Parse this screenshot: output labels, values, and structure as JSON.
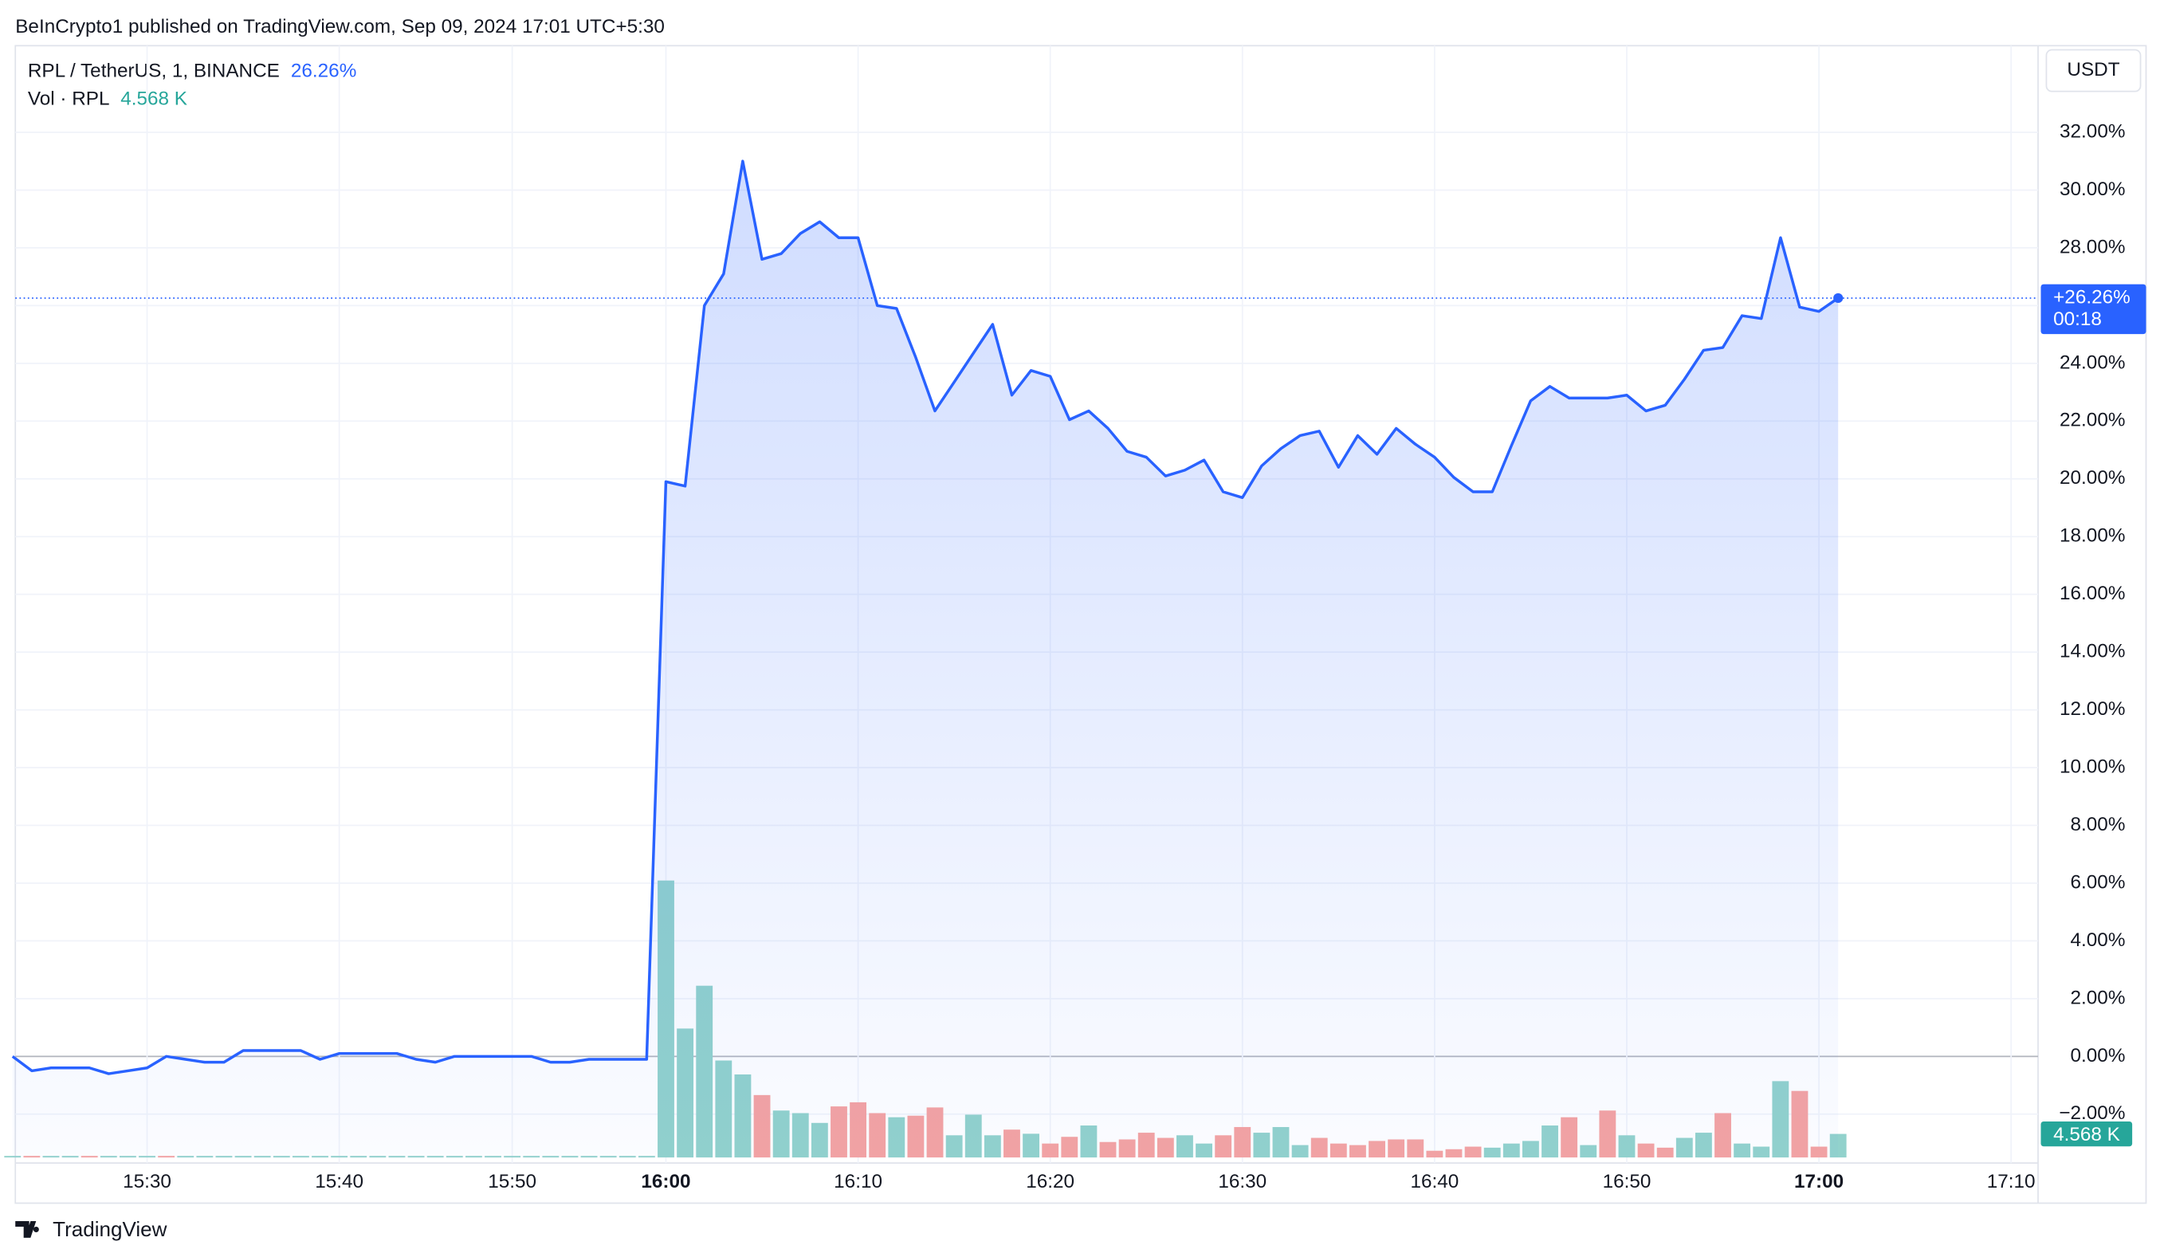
{
  "header": {
    "published": "BeInCrypto1 published on TradingView.com, Sep 09, 2024 17:01 UTC+5:30",
    "brand": "TradingView"
  },
  "chart_data": {
    "type": "line",
    "symbol": "RPL / TetherUS, 1, BINANCE",
    "currency": "USDT",
    "last_label": "26.26%",
    "price_tag": "+26.26%",
    "countdown": "00:18",
    "categories": [
      null,
      null,
      null,
      null,
      null,
      null,
      null,
      "15:30",
      null,
      null,
      null,
      null,
      null,
      null,
      null,
      null,
      null,
      "15:40",
      null,
      null,
      null,
      null,
      null,
      null,
      null,
      null,
      "15:50",
      null,
      null,
      null,
      null,
      null,
      null,
      null,
      "16:00",
      null,
      null,
      null,
      null,
      null,
      null,
      null,
      null,
      null,
      "16:10",
      null,
      null,
      null,
      null,
      null,
      null,
      null,
      null,
      null,
      "16:20",
      null,
      null,
      null,
      null,
      null,
      null,
      null,
      null,
      null,
      "16:30",
      null,
      null,
      null,
      null,
      null,
      null,
      null,
      null,
      null,
      "16:40",
      null,
      null,
      null,
      null,
      null,
      null,
      null,
      null,
      null,
      "16:50",
      null,
      null,
      null,
      null,
      null,
      null,
      null,
      null,
      null,
      "17:00",
      null,
      null,
      null,
      null,
      null,
      null,
      null,
      null,
      null,
      "17:10"
    ],
    "series": [
      {
        "color": "#2962ff",
        "values": [
          0,
          -0.5,
          -0.4,
          -0.4,
          -0.4,
          -0.6,
          -0.5,
          -0.4,
          0,
          -0.1,
          -0.2,
          -0.2,
          0.2,
          0.2,
          0.2,
          0.2,
          -0.1,
          0.1,
          0.1,
          0.1,
          0.1,
          -0.1,
          -0.2,
          0,
          0,
          0,
          0,
          0,
          -0.2,
          -0.2,
          -0.1,
          -0.1,
          -0.1,
          -0.1,
          19.9,
          19.75,
          26.0,
          27.1,
          31.0,
          27.6,
          27.8,
          28.5,
          28.9,
          28.35,
          28.35,
          26.0,
          25.9,
          24.2,
          22.35,
          23.35,
          24.35,
          25.35,
          22.9,
          23.75,
          23.55,
          22.05,
          22.35,
          21.75,
          20.95,
          20.75,
          20.1,
          20.3,
          20.65,
          19.55,
          19.35,
          20.45,
          21.05,
          21.5,
          21.65,
          20.4,
          21.5,
          20.85,
          21.75,
          21.2,
          20.75,
          20.05,
          19.55,
          19.55,
          21.15,
          22.7,
          23.2,
          22.8,
          22.8,
          22.8,
          22.9,
          22.35,
          22.55,
          23.45,
          24.45,
          24.55,
          25.65,
          25.55,
          28.35,
          25.95,
          25.8,
          26.26,
          null,
          null,
          null,
          null,
          null,
          null,
          null,
          null,
          null
        ]
      }
    ],
    "volume": {
      "name": "Vol · RPL",
      "last_label": "4.568 K",
      "vlim": [
        0,
        60000
      ],
      "values": [
        300,
        300,
        300,
        300,
        300,
        300,
        300,
        300,
        300,
        300,
        300,
        300,
        300,
        300,
        300,
        300,
        300,
        300,
        300,
        300,
        300,
        300,
        300,
        300,
        300,
        300,
        300,
        300,
        300,
        300,
        300,
        300,
        300,
        300,
        53700,
        25000,
        33300,
        18800,
        16100,
        12100,
        9100,
        8600,
        6700,
        9900,
        10700,
        8600,
        7800,
        8100,
        9700,
        4300,
        8300,
        4300,
        5400,
        4600,
        2700,
        4000,
        6200,
        3000,
        3500,
        4800,
        3800,
        4300,
        2700,
        4300,
        5900,
        4800,
        5900,
        2400,
        3800,
        2700,
        2400,
        3200,
        3500,
        3500,
        1300,
        1600,
        2100,
        1900,
        2700,
        3200,
        6200,
        7800,
        2400,
        9100,
        4300,
        2700,
        1900,
        3800,
        4800,
        8600,
        2700,
        2100,
        14800,
        12900,
        2100,
        4568,
        null,
        null,
        null,
        null,
        null,
        null,
        null,
        null,
        null
      ],
      "colors": [
        "#92d2cc",
        "#f5a3a2",
        "#92d2cc",
        "#92d2cc",
        "#f5a3a2",
        "#92d2cc",
        "#92d2cc",
        "#92d2cc",
        "#f5a3a2",
        "#92d2cc",
        "#92d2cc",
        "#92d2cc",
        "#92d2cc",
        "#92d2cc",
        "#92d2cc",
        "#92d2cc",
        "#92d2cc",
        "#92d2cc",
        "#92d2cc",
        "#92d2cc",
        "#92d2cc",
        "#92d2cc",
        "#92d2cc",
        "#92d2cc",
        "#92d2cc",
        "#92d2cc",
        "#92d2cc",
        "#92d2cc",
        "#92d2cc",
        "#92d2cc",
        "#92d2cc",
        "#92d2cc",
        "#92d2cc",
        "#92d2cc",
        "#92d2cc",
        "#92d2cc",
        "#92d2cc",
        "#92d2cc",
        "#92d2cc",
        "#f5a3a2",
        "#92d2cc",
        "#92d2cc",
        "#92d2cc",
        "#f5a3a2",
        "#f5a3a2",
        "#f5a3a2",
        "#92d2cc",
        "#f5a3a2",
        "#f5a3a2",
        "#92d2cc",
        "#92d2cc",
        "#92d2cc",
        "#f5a3a2",
        "#92d2cc",
        "#f5a3a2",
        "#f5a3a2",
        "#92d2cc",
        "#f5a3a2",
        "#f5a3a2",
        "#f5a3a2",
        "#f5a3a2",
        "#92d2cc",
        "#92d2cc",
        "#f5a3a2",
        "#f5a3a2",
        "#92d2cc",
        "#92d2cc",
        "#92d2cc",
        "#f5a3a2",
        "#f5a3a2",
        "#f5a3a2",
        "#f5a3a2",
        "#f5a3a2",
        "#f5a3a2",
        "#f5a3a2",
        "#f5a3a2",
        "#f5a3a2",
        "#92d2cc",
        "#92d2cc",
        "#92d2cc",
        "#92d2cc",
        "#f5a3a2",
        "#92d2cc",
        "#f5a3a2",
        "#92d2cc",
        "#f5a3a2",
        "#f5a3a2",
        "#92d2cc",
        "#92d2cc",
        "#f5a3a2",
        "#92d2cc",
        "#92d2cc",
        "#92d2cc",
        "#f5a3a2",
        "#f5a3a2",
        "#92d2cc",
        null,
        null,
        null,
        null,
        null,
        null,
        null,
        null,
        null
      ]
    },
    "ylim": [
      -3.5,
      35
    ],
    "yticks": [
      {
        "value": -2,
        "label": "−2.00%"
      },
      {
        "value": 0,
        "label": "0.00%"
      },
      {
        "value": 2,
        "label": "2.00%"
      },
      {
        "value": 4,
        "label": "4.00%"
      },
      {
        "value": 6,
        "label": "6.00%"
      },
      {
        "value": 8,
        "label": "8.00%"
      },
      {
        "value": 10,
        "label": "10.00%"
      },
      {
        "value": 12,
        "label": "12.00%"
      },
      {
        "value": 14,
        "label": "14.00%"
      },
      {
        "value": 16,
        "label": "16.00%"
      },
      {
        "value": 18,
        "label": "18.00%"
      },
      {
        "value": 20,
        "label": "20.00%"
      },
      {
        "value": 22,
        "label": "22.00%"
      },
      {
        "value": 24,
        "label": "24.00%"
      },
      {
        "value": 26,
        "label": "26.00%"
      },
      {
        "value": 28,
        "label": "28.00%"
      },
      {
        "value": 30,
        "label": "30.00%"
      },
      {
        "value": 32,
        "label": "32.00%"
      }
    ],
    "grid": true
  }
}
